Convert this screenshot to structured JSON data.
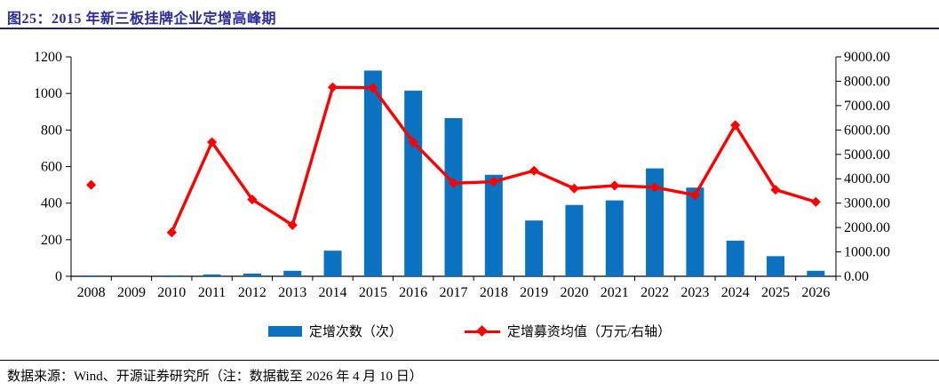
{
  "title": {
    "text": "图25：2015 年新三板挂牌企业定增高峰期"
  },
  "footer": {
    "text": "数据来源：Wind、开源证券研究所（注：数据截至 2026 年 4 月 10 日）"
  },
  "legend": [
    {
      "label": "定增次数（次）",
      "type": "bar"
    },
    {
      "label": "定增募资均值（万元/右轴）",
      "type": "line"
    }
  ],
  "colors": {
    "bar": "#0B72C2",
    "line": "#FF0000",
    "title": "#2B2B9B",
    "axis": "#000000"
  },
  "chart_data": {
    "type": "bar+line combo",
    "categories": [
      "2008",
      "2009",
      "2010",
      "2011",
      "2012",
      "2013",
      "2014",
      "2015",
      "2016",
      "2017",
      "2018",
      "2019",
      "2020",
      "2021",
      "2022",
      "2023",
      "2024",
      "2025",
      "2026"
    ],
    "series": [
      {
        "name": "定增次数（次）",
        "type": "bar",
        "axis": "left",
        "values": [
          5,
          0,
          5,
          10,
          15,
          30,
          140,
          1125,
          1015,
          865,
          555,
          305,
          390,
          415,
          590,
          485,
          195,
          110,
          30
        ]
      },
      {
        "name": "定增募资均值（万元/右轴）",
        "type": "line",
        "axis": "right",
        "values": [
          3750,
          null,
          1800,
          5500,
          3150,
          2100,
          7750,
          7730,
          5500,
          3820,
          3880,
          4330,
          3600,
          3720,
          3650,
          3330,
          6200,
          3550,
          3050
        ]
      }
    ],
    "left_axis": {
      "min": 0,
      "max": 1200,
      "step": 200
    },
    "right_axis": {
      "min": 0,
      "max": 9000,
      "step": 1000,
      "format": "two-decimals"
    },
    "grid": false,
    "legend_position": "bottom"
  }
}
